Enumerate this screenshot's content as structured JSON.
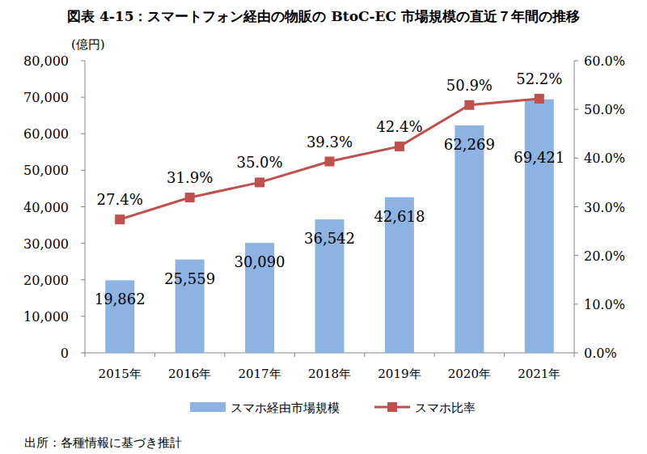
{
  "chart_data": {
    "type": "bar",
    "title": "図表 4-15：スマートフォン経由の物販の BtoC-EC 市場規模の直近７年間の推移",
    "y_label": "(億円)",
    "source": "出所：各種情報に基づき推計",
    "categories": [
      "2015年",
      "2016年",
      "2017年",
      "2018年",
      "2019年",
      "2020年",
      "2021年"
    ],
    "series": [
      {
        "name": "スマホ経由市場規模",
        "type": "bar",
        "color": "#8db3e2",
        "values": [
          19862,
          25559,
          30090,
          36542,
          42618,
          62269,
          69421
        ],
        "value_labels": [
          "19,862",
          "25,559",
          "30,090",
          "36,542",
          "42,618",
          "62,269",
          "69,421"
        ]
      },
      {
        "name": "スマホ比率",
        "type": "line",
        "axis": "y2",
        "color": "#c0504d",
        "marker": "square",
        "line_style": "solid",
        "values": [
          27.4,
          31.9,
          35.0,
          39.3,
          42.4,
          50.9,
          52.2
        ],
        "value_labels": [
          "27.4%",
          "31.9%",
          "35.0%",
          "39.3%",
          "42.4%",
          "50.9%",
          "52.2%"
        ]
      }
    ],
    "ylim": [
      0,
      80000
    ],
    "yticks": [
      0,
      {
        "value": 10000,
        "label": "10,000"
      },
      {
        "value": 20000,
        "label": "20,000"
      },
      {
        "value": 30000,
        "label": "30,000"
      },
      {
        "value": 40000,
        "label": "40,000"
      },
      {
        "value": 50000,
        "label": "50,000"
      },
      {
        "value": 60000,
        "label": "60,000"
      },
      {
        "value": 70000,
        "label": "70,000"
      },
      {
        "value": 80000,
        "label": "80,000"
      }
    ],
    "y2lim": [
      0,
      60
    ],
    "y2ticks": [
      {
        "value": 0,
        "label": "0.0%"
      },
      {
        "value": 10,
        "label": "10.0%"
      },
      {
        "value": 20,
        "label": "20.0%"
      },
      {
        "value": 30,
        "label": "30.0%"
      },
      {
        "value": 40,
        "label": "40.0%"
      },
      {
        "value": 50,
        "label": "50.0%"
      },
      {
        "value": 60,
        "label": "60.0%"
      }
    ],
    "grid": false,
    "legend": "bottom",
    "data_labels": true
  }
}
